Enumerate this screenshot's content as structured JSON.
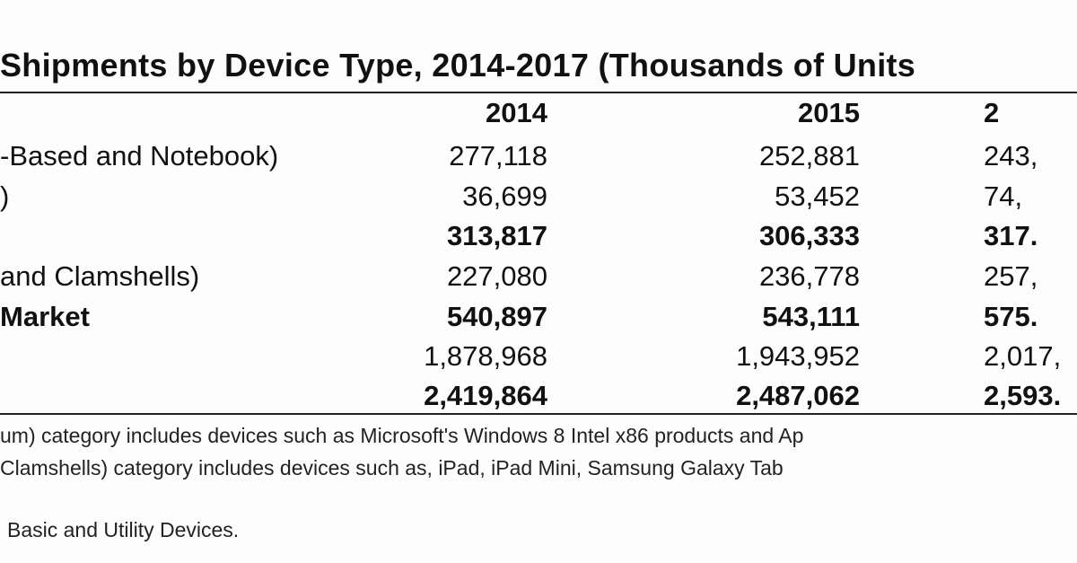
{
  "title": "Shipments by Device Type, 2014-2017 (Thousands of Units",
  "headers": {
    "y2014": "2014",
    "y2015": "2015",
    "y2016": "2"
  },
  "rows": [
    {
      "label": "-Based and Notebook)",
      "y2014": "277,118",
      "y2015": "252,881",
      "y2016": "243,"
    },
    {
      "label": ")",
      "y2014": "36,699",
      "y2015": "53,452",
      "y2016": "74,"
    },
    {
      "label": "",
      "y2014": "313,817",
      "y2015": "306,333",
      "y2016": "317."
    },
    {
      "label": "and Clamshells)",
      "y2014": "227,080",
      "y2015": "236,778",
      "y2016": "257,"
    },
    {
      "label": "Market",
      "y2014": "540,897",
      "y2015": "543,111",
      "y2016": "575."
    },
    {
      "label": "",
      "y2014": "1,878,968",
      "y2015": "1,943,952",
      "y2016": "2,017,"
    },
    {
      "label": "",
      "y2014": "2,419,864",
      "y2015": "2,487,062",
      "y2016": "2,593."
    }
  ],
  "notes": [
    "um) category includes devices such as Microsoft's Windows 8 Intel x86 products and Ap",
    "Clamshells) category includes devices such as, iPad, iPad Mini, Samsung Galaxy Tab",
    "Basic and Utility Devices."
  ]
}
